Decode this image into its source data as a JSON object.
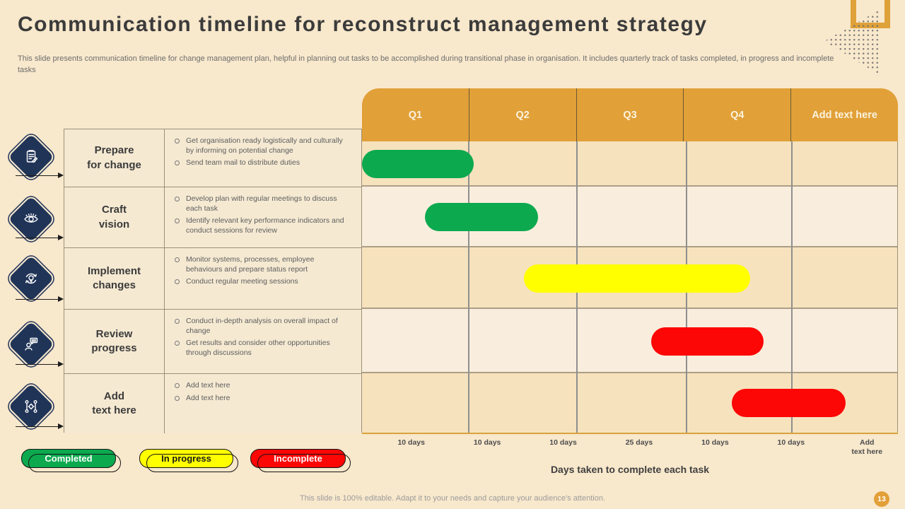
{
  "slide": {
    "title": "Communication timeline for reconstruct management strategy",
    "subtitle": "This slide presents communication timeline for change management plan, helpful in planning out tasks to be accomplished during transitional phase in organisation. It includes quarterly track of tasks completed, in progress and incomplete tasks",
    "footer": "This slide is 100% editable. Adapt it to your needs and capture your audience's attention.",
    "page_number": "13"
  },
  "colors": {
    "background": "#f8e8cc",
    "header_orange": "#e1a038",
    "diamond_navy": "#203457",
    "grid_gold_line": "#d9a33c"
  },
  "table": {
    "column_headers": [
      "Q1",
      "Q2",
      "Q3",
      "Q4",
      "Add text here"
    ],
    "rows": [
      {
        "icon": "task-checklist-icon",
        "title_top": "Prepare",
        "title_bottom": "for change",
        "bullets": [
          "Get organisation ready logistically and culturally by informing on potential change",
          "Send team mail to distribute duties"
        ]
      },
      {
        "icon": "vision-eye-icon",
        "title_top": "Craft",
        "title_bottom": "vision",
        "bullets": [
          "Develop plan with regular meetings to discuss each task",
          "Identify relevant key performance indicators and conduct sessions for review"
        ]
      },
      {
        "icon": "bulb-cycle-icon",
        "title_top": "Implement",
        "title_bottom": "changes",
        "bullets": [
          "Monitor systems, processes, employee behaviours and prepare status report",
          "Conduct regular meeting sessions"
        ]
      },
      {
        "icon": "person-chat-icon",
        "title_top": "Review",
        "title_bottom": "progress",
        "bullets": [
          "Conduct in-depth analysis on overall impact of change",
          "Get results and consider other opportunities through discussions"
        ]
      },
      {
        "icon": "team-network-icon",
        "title_top": "Add",
        "title_bottom": "text here",
        "bullets": [
          "Add text here",
          "Add text here"
        ]
      }
    ]
  },
  "chart_data": {
    "type": "gantt",
    "title": "Communication timeline for reconstruct management strategy",
    "categories": [
      "Q1",
      "Q2",
      "Q3",
      "Q4",
      "Add text here"
    ],
    "tasks": [
      "Prepare for change",
      "Craft vision",
      "Implement changes",
      "Review progress",
      "Add text here"
    ],
    "status_colors": {
      "completed": "#0ca94f",
      "in_progress": "#ffff00",
      "incomplete": "#fc0606"
    },
    "bars": [
      {
        "task": "Prepare for change",
        "status": "completed",
        "start_q": 0.0,
        "end_q": 1.04
      },
      {
        "task": "Craft vision",
        "status": "completed",
        "start_q": 0.59,
        "end_q": 1.64
      },
      {
        "task": "Implement changes",
        "status": "in_progress",
        "start_q": 1.51,
        "end_q": 3.62
      },
      {
        "task": "Review progress",
        "status": "incomplete",
        "start_q": 2.7,
        "end_q": 3.75
      },
      {
        "task": "Add text here",
        "status": "incomplete",
        "start_q": 3.45,
        "end_q": 4.51
      }
    ],
    "duration_labels": [
      "10 days",
      "10 days",
      "10 days",
      "25 days",
      "10 days",
      "10 days",
      "Add\ntext here"
    ],
    "xlabel": "Days taken to complete each task",
    "grid": true,
    "legend_position": "bottom-left"
  },
  "legend": [
    {
      "label": "Completed",
      "color": "#0ca94f",
      "text_color": "#ffffff"
    },
    {
      "label": "In progress",
      "color": "#ffff00",
      "text_color": "#1a1a1a"
    },
    {
      "label": "Incomplete",
      "color": "#fc0606",
      "text_color": "#ffffff"
    }
  ]
}
